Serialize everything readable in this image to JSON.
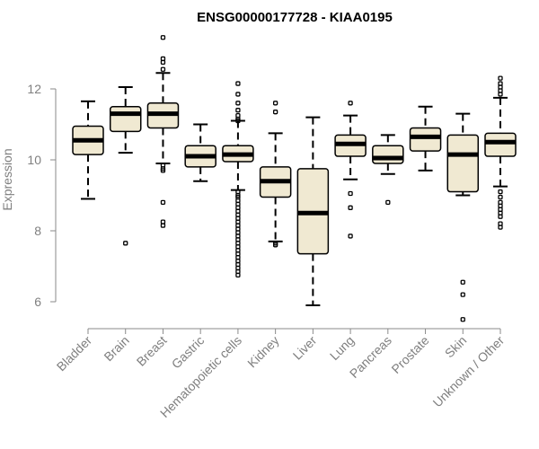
{
  "chart_data": {
    "type": "boxplot",
    "title": "ENSG00000177728 - KIAA0195",
    "xlabel": "",
    "ylabel": "Expression",
    "ylim": [
      5.2,
      13.6
    ],
    "yticks": [
      6,
      8,
      10,
      12
    ],
    "categories": [
      "Bladder",
      "Brain",
      "Breast",
      "Gastric",
      "Hematopoietic cells",
      "Kidney",
      "Liver",
      "Lung",
      "Pancreas",
      "Prostate",
      "Skin",
      "Unknown / Other"
    ],
    "boxes": [
      {
        "name": "Bladder",
        "whisker_low": 8.9,
        "q1": 10.15,
        "median": 10.55,
        "q3": 10.95,
        "whisker_high": 11.65,
        "outliers": []
      },
      {
        "name": "Brain",
        "whisker_low": 10.2,
        "q1": 10.8,
        "median": 11.3,
        "q3": 11.5,
        "whisker_high": 12.05,
        "outliers": [
          7.65
        ]
      },
      {
        "name": "Breast",
        "whisker_low": 9.9,
        "q1": 10.9,
        "median": 11.3,
        "q3": 11.6,
        "whisker_high": 12.45,
        "outliers": [
          13.45,
          12.85,
          12.75,
          12.55,
          9.85,
          9.75,
          9.7,
          8.8,
          8.25,
          8.15
        ]
      },
      {
        "name": "Gastric",
        "whisker_low": 9.4,
        "q1": 9.8,
        "median": 10.1,
        "q3": 10.4,
        "whisker_high": 11.0,
        "outliers": []
      },
      {
        "name": "Hematopoietic cells",
        "whisker_low": 9.15,
        "q1": 9.95,
        "median": 10.15,
        "q3": 10.4,
        "whisker_high": 11.1,
        "outliers": [
          12.15,
          11.85,
          11.6,
          11.4,
          11.25,
          11.15,
          11.1,
          9.1,
          9.0,
          8.95,
          8.85,
          8.75,
          8.65,
          8.55,
          8.45,
          8.35,
          8.25,
          8.15,
          8.05,
          7.95,
          7.85,
          7.75,
          7.65,
          7.55,
          7.45,
          7.35,
          7.25,
          7.15,
          7.05,
          6.95,
          6.85,
          6.75
        ]
      },
      {
        "name": "Kidney",
        "whisker_low": 7.7,
        "q1": 8.95,
        "median": 9.4,
        "q3": 9.8,
        "whisker_high": 10.75,
        "outliers": [
          11.6,
          11.35,
          7.65,
          7.6
        ]
      },
      {
        "name": "Liver",
        "whisker_low": 5.9,
        "q1": 7.35,
        "median": 8.5,
        "q3": 9.75,
        "whisker_high": 11.2,
        "outliers": []
      },
      {
        "name": "Lung",
        "whisker_low": 9.45,
        "q1": 10.1,
        "median": 10.45,
        "q3": 10.7,
        "whisker_high": 11.25,
        "outliers": [
          11.6,
          9.05,
          8.65,
          7.85
        ]
      },
      {
        "name": "Pancreas",
        "whisker_low": 9.6,
        "q1": 9.9,
        "median": 10.05,
        "q3": 10.4,
        "whisker_high": 10.7,
        "outliers": [
          8.8
        ]
      },
      {
        "name": "Prostate",
        "whisker_low": 9.7,
        "q1": 10.25,
        "median": 10.65,
        "q3": 10.9,
        "whisker_high": 11.5,
        "outliers": []
      },
      {
        "name": "Skin",
        "whisker_low": 9.0,
        "q1": 9.1,
        "median": 10.15,
        "q3": 10.7,
        "whisker_high": 11.3,
        "outliers": [
          6.55,
          6.2,
          5.5
        ]
      },
      {
        "name": "Unknown / Other",
        "whisker_low": 9.25,
        "q1": 10.1,
        "median": 10.5,
        "q3": 10.75,
        "whisker_high": 11.75,
        "outliers": [
          12.3,
          12.15,
          12.05,
          11.95,
          11.85,
          9.1,
          8.95,
          8.8,
          8.7,
          8.6,
          8.5,
          8.4,
          8.2,
          8.1
        ]
      }
    ]
  }
}
